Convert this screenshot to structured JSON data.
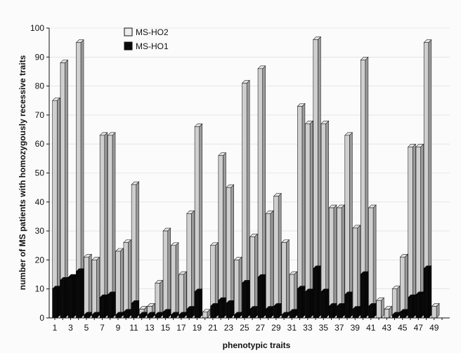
{
  "chart_data": {
    "type": "bar",
    "xlabel": "phenotypic traits",
    "ylabel": "number of MS patients with homozygously recessive traits",
    "ylim": [
      0,
      100
    ],
    "y_ticks": [
      0,
      10,
      20,
      30,
      40,
      50,
      60,
      70,
      80,
      90,
      100
    ],
    "x_tick_labels": [
      "1",
      "3",
      "5",
      "7",
      "9",
      "11",
      "13",
      "15",
      "17",
      "19",
      "21",
      "23",
      "25",
      "27",
      "29",
      "31",
      "33",
      "35",
      "37",
      "39",
      "41",
      "43",
      "45",
      "47",
      "49"
    ],
    "categories": [
      "1",
      "2",
      "3",
      "4",
      "5",
      "6",
      "7",
      "8",
      "9",
      "10",
      "11",
      "12",
      "13",
      "14",
      "15",
      "16",
      "17",
      "18",
      "19",
      "20",
      "21",
      "22",
      "23",
      "24",
      "25",
      "26",
      "27",
      "28",
      "29",
      "30",
      "31",
      "32",
      "33",
      "34",
      "35",
      "36",
      "37",
      "38",
      "39",
      "40",
      "41",
      "42",
      "43",
      "44",
      "45",
      "46",
      "47",
      "48",
      "49",
      "50"
    ],
    "legend_position": "top-left",
    "series": [
      {
        "name": "MS-HO2",
        "color": "#cfcfcf",
        "values": [
          75,
          88,
          14,
          95,
          21,
          20,
          63,
          63,
          23,
          26,
          46,
          3,
          4,
          12,
          30,
          25,
          15,
          36,
          66,
          2,
          25,
          56,
          45,
          20,
          81,
          28,
          86,
          36,
          42,
          26,
          15,
          73,
          67,
          96,
          67,
          38,
          38,
          63,
          31,
          89,
          38,
          6,
          3,
          10,
          21,
          59,
          59,
          95,
          4,
          0
        ]
      },
      {
        "name": "MS-HO1",
        "color": "#0a0a0a",
        "values": [
          10,
          13,
          14,
          16,
          1,
          1,
          7,
          8,
          1,
          2,
          5,
          1,
          1,
          1,
          2,
          1,
          1,
          3,
          9,
          0,
          4,
          6,
          5,
          1,
          12,
          3,
          14,
          3,
          4,
          1,
          2,
          10,
          9,
          17,
          9,
          4,
          4,
          8,
          3,
          15,
          4,
          0,
          0,
          1,
          2,
          7,
          8,
          17,
          0,
          0
        ]
      }
    ]
  }
}
